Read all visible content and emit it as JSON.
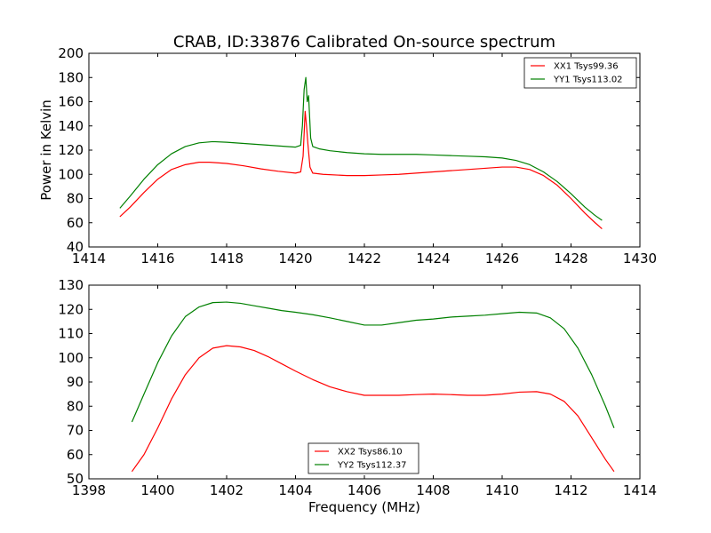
{
  "chart_data": [
    {
      "type": "line",
      "title": "CRAB, ID:33876 Calibrated On-source spectrum",
      "xlabel": "",
      "ylabel": "Power in Kelvin",
      "xlim": [
        1414,
        1430
      ],
      "ylim": [
        40,
        200
      ],
      "xticks": [
        1414,
        1416,
        1418,
        1420,
        1422,
        1424,
        1426,
        1428,
        1430
      ],
      "yticks": [
        40,
        60,
        80,
        100,
        120,
        140,
        160,
        180,
        200
      ],
      "grid": false,
      "legend_position": "top-right",
      "series": [
        {
          "name": "XX1 Tsys99.36",
          "color": "#ff0000",
          "x": [
            1414.9,
            1415.2,
            1415.6,
            1416.0,
            1416.4,
            1416.8,
            1417.2,
            1417.5,
            1418.0,
            1418.5,
            1419.0,
            1419.5,
            1420.0,
            1420.15,
            1420.22,
            1420.28,
            1420.32,
            1420.36,
            1420.42,
            1420.5,
            1420.8,
            1421.5,
            1422.0,
            1422.5,
            1423.0,
            1423.5,
            1424.0,
            1424.5,
            1425.0,
            1425.5,
            1426.0,
            1426.4,
            1426.8,
            1427.2,
            1427.6,
            1428.0,
            1428.4,
            1428.7,
            1428.9
          ],
          "y": [
            65,
            73,
            85,
            96,
            104,
            108,
            110,
            110,
            109,
            107,
            104.5,
            102.5,
            101,
            102,
            115,
            152,
            140,
            125,
            106,
            101,
            100,
            99,
            99,
            99.5,
            100,
            101,
            102,
            103,
            104,
            105,
            106,
            106,
            104,
            99,
            91,
            80,
            68,
            60,
            55
          ]
        },
        {
          "name": "YY1 Tsys113.02",
          "color": "#008000",
          "x": [
            1414.9,
            1415.2,
            1415.6,
            1416.0,
            1416.4,
            1416.8,
            1417.2,
            1417.6,
            1418.0,
            1418.5,
            1419.0,
            1419.5,
            1420.0,
            1420.15,
            1420.2,
            1420.25,
            1420.3,
            1420.34,
            1420.38,
            1420.44,
            1420.5,
            1420.7,
            1421.0,
            1421.5,
            1422.0,
            1422.5,
            1423.0,
            1423.5,
            1424.0,
            1424.5,
            1425.0,
            1425.5,
            1426.0,
            1426.4,
            1426.8,
            1427.2,
            1427.6,
            1428.0,
            1428.4,
            1428.7,
            1428.9
          ],
          "y": [
            72,
            82,
            96,
            108,
            117,
            123,
            126,
            127,
            126.5,
            125.5,
            124.5,
            123.5,
            122.5,
            124,
            140,
            170,
            180,
            160,
            165,
            130,
            123,
            121,
            119.5,
            118,
            117,
            116.5,
            116.5,
            116.5,
            116,
            115.5,
            115,
            114.5,
            113.5,
            111.5,
            108,
            102,
            94,
            84,
            73,
            66,
            62
          ]
        }
      ]
    },
    {
      "type": "line",
      "title": "",
      "xlabel": "Frequency (MHz)",
      "ylabel": "",
      "xlim": [
        1398,
        1414
      ],
      "ylim": [
        50,
        130
      ],
      "xticks": [
        1398,
        1400,
        1402,
        1404,
        1406,
        1408,
        1410,
        1412,
        1414
      ],
      "yticks": [
        50,
        60,
        70,
        80,
        90,
        100,
        110,
        120,
        130
      ],
      "grid": false,
      "legend_position": "bottom-center",
      "series": [
        {
          "name": "XX2 Tsys86.10",
          "color": "#ff0000",
          "x": [
            1399.25,
            1399.6,
            1400.0,
            1400.4,
            1400.8,
            1401.2,
            1401.6,
            1402.0,
            1402.4,
            1402.8,
            1403.2,
            1403.6,
            1404.0,
            1404.5,
            1405.0,
            1405.5,
            1406.0,
            1406.5,
            1407.0,
            1407.5,
            1408.0,
            1408.5,
            1409.0,
            1409.5,
            1410.0,
            1410.5,
            1411.0,
            1411.4,
            1411.8,
            1412.2,
            1412.6,
            1413.0,
            1413.25
          ],
          "y": [
            53,
            60,
            71,
            83,
            93,
            100,
            104,
            105,
            104.5,
            103,
            100.5,
            97.5,
            94.5,
            91,
            88,
            86,
            84.5,
            84.5,
            84.5,
            84.8,
            85,
            84.8,
            84.5,
            84.5,
            85,
            85.8,
            86,
            85,
            82,
            76,
            67,
            58,
            53
          ]
        },
        {
          "name": "YY2 Tsys112.37",
          "color": "#008000",
          "x": [
            1399.25,
            1399.6,
            1400.0,
            1400.4,
            1400.8,
            1401.2,
            1401.6,
            1402.0,
            1402.4,
            1402.8,
            1403.2,
            1403.6,
            1404.0,
            1404.5,
            1405.0,
            1405.5,
            1406.0,
            1406.5,
            1407.0,
            1407.5,
            1408.0,
            1408.5,
            1409.0,
            1409.5,
            1410.0,
            1410.5,
            1411.0,
            1411.4,
            1411.8,
            1412.2,
            1412.6,
            1413.0,
            1413.25
          ],
          "y": [
            73.5,
            85,
            98,
            109,
            117,
            121,
            122.8,
            123,
            122.5,
            121.5,
            120.5,
            119.5,
            118.8,
            117.8,
            116.5,
            115,
            113.5,
            113.5,
            114.5,
            115.5,
            116,
            116.8,
            117.2,
            117.6,
            118.2,
            118.8,
            118.5,
            116.5,
            112,
            104,
            93,
            80,
            71
          ]
        }
      ]
    }
  ]
}
